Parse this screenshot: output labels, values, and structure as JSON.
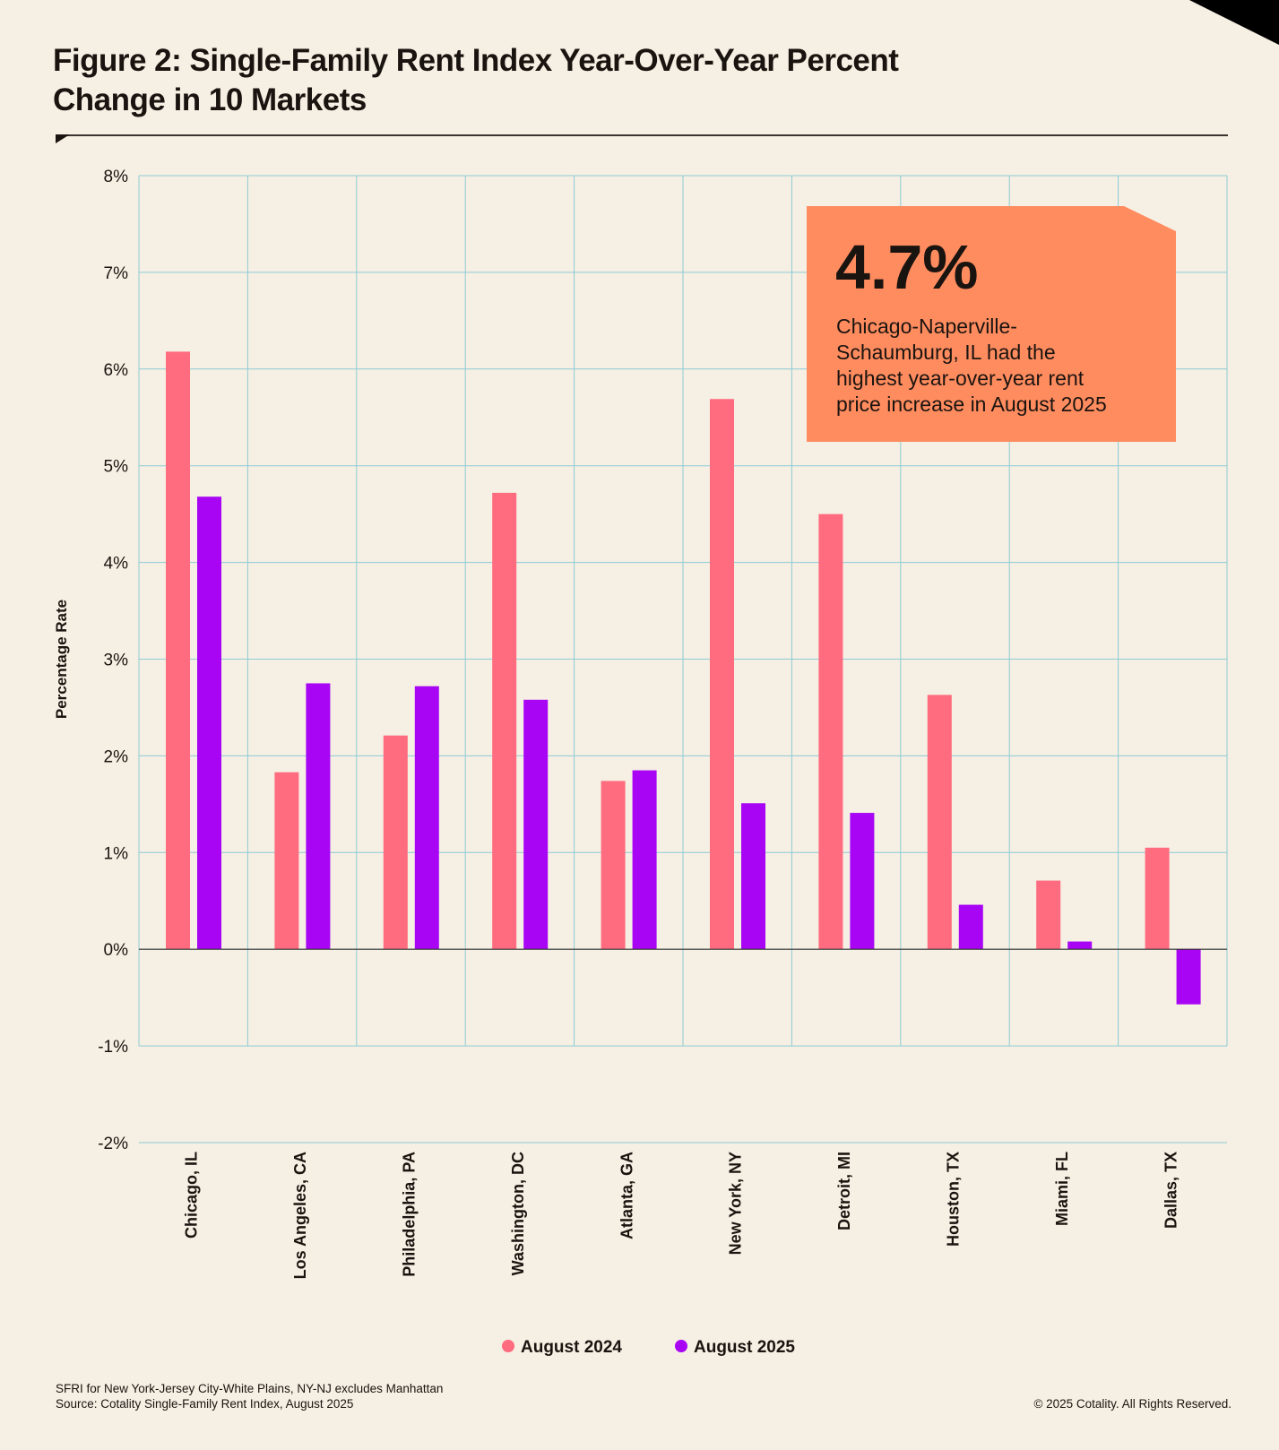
{
  "title": "Figure 2: Single-Family Rent Index Year-Over-Year Percent Change in 10 Markets",
  "colors": {
    "background": "#f6efe3",
    "grid": "#8ccbd6",
    "aug2024": "#ff6b7f",
    "aug2025": "#a805f5",
    "callout": "#ff8c5f"
  },
  "callout": {
    "value": "4.7%",
    "text_lines": [
      "Chicago-Naperville-",
      "Schaumburg, IL had the",
      "highest year-over-year rent",
      "price increase in August 2025"
    ]
  },
  "chart_data": {
    "type": "bar",
    "title": "Figure 2: Single-Family Rent Index Year-Over-Year Percent Change in 10 Markets",
    "xlabel": "",
    "ylabel": "Percentage Rate",
    "ylim": [
      -2,
      8
    ],
    "yticks": [
      "8%",
      "7%",
      "6%",
      "5%",
      "4%",
      "3%",
      "2%",
      "1%",
      "0%",
      "-1%",
      "-2%"
    ],
    "ytick_values": [
      8,
      7,
      6,
      5,
      4,
      3,
      2,
      1,
      0,
      -1,
      -2
    ],
    "grid": true,
    "legend_position": "bottom",
    "categories": [
      "Chicago, IL",
      "Los Angeles, CA",
      "Philadelphia, PA",
      "Washington, DC",
      "Atlanta, GA",
      "New York, NY",
      "Detroit, MI",
      "Houston, TX",
      "Miami, FL",
      "Dallas, TX"
    ],
    "series": [
      {
        "name": "August 2024",
        "color": "#ff6b7f",
        "values": [
          6.18,
          1.83,
          2.21,
          4.72,
          1.74,
          5.69,
          4.5,
          2.63,
          0.71,
          1.05
        ]
      },
      {
        "name": "August 2025",
        "color": "#a805f5",
        "values": [
          4.68,
          2.75,
          2.72,
          2.58,
          1.85,
          1.51,
          1.41,
          0.46,
          0.08,
          -0.57
        ]
      }
    ]
  },
  "footer": {
    "note": "SFRI for New York-Jersey City-White Plains, NY-NJ excludes Manhattan",
    "source": "Source: Cotality Single-Family Rent Index, August 2025",
    "copyright": "© 2025 Cotality. All Rights Reserved."
  }
}
